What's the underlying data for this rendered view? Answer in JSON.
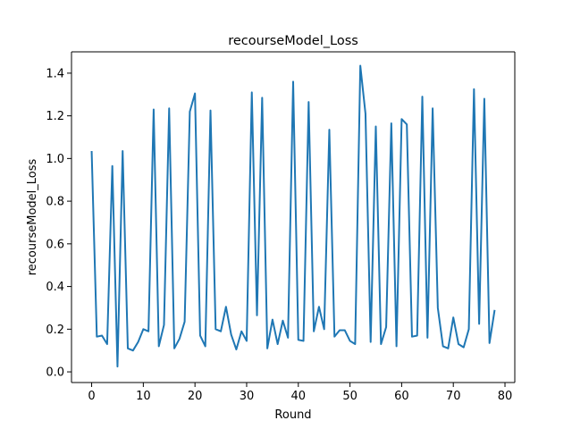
{
  "chart_data": {
    "type": "line",
    "title": "recourseModel_Loss",
    "xlabel": "Round",
    "ylabel": "recourseModel_Loss",
    "xlim": [
      -3.9,
      81.9
    ],
    "ylim": [
      -0.05,
      1.5
    ],
    "xticks": [
      0,
      10,
      20,
      30,
      40,
      50,
      60,
      70,
      80
    ],
    "xtick_labels": [
      "0",
      "10",
      "20",
      "30",
      "40",
      "50",
      "60",
      "70",
      "80"
    ],
    "yticks": [
      0.0,
      0.2,
      0.4,
      0.6,
      0.8,
      1.0,
      1.2,
      1.4
    ],
    "ytick_labels": [
      "0.0",
      "0.2",
      "0.4",
      "0.6",
      "0.8",
      "1.0",
      "1.2",
      "1.4"
    ],
    "grid": false,
    "series": [
      {
        "color": "#1f77b4",
        "x": [
          0,
          1,
          2,
          3,
          4,
          5,
          6,
          7,
          8,
          9,
          10,
          11,
          12,
          13,
          14,
          15,
          16,
          17,
          18,
          19,
          20,
          21,
          22,
          23,
          24,
          25,
          26,
          27,
          28,
          29,
          30,
          31,
          32,
          33,
          34,
          35,
          36,
          37,
          38,
          39,
          40,
          41,
          42,
          43,
          44,
          45,
          46,
          47,
          48,
          49,
          50,
          51,
          52,
          53,
          54,
          55,
          56,
          57,
          58,
          59,
          60,
          61,
          62,
          63,
          64,
          65,
          66,
          67,
          68,
          69,
          70,
          71,
          72,
          73,
          74,
          75,
          76,
          77,
          78
        ],
        "values": [
          1.035,
          0.165,
          0.17,
          0.13,
          0.965,
          0.025,
          1.035,
          0.11,
          0.1,
          0.14,
          0.2,
          0.19,
          1.23,
          0.12,
          0.22,
          1.235,
          0.11,
          0.155,
          0.235,
          1.22,
          1.305,
          0.17,
          0.12,
          1.225,
          0.2,
          0.19,
          0.305,
          0.175,
          0.105,
          0.19,
          0.145,
          1.31,
          0.265,
          1.285,
          0.11,
          0.245,
          0.13,
          0.24,
          0.16,
          1.36,
          0.15,
          0.145,
          1.265,
          0.19,
          0.305,
          0.2,
          1.135,
          0.165,
          0.195,
          0.195,
          0.145,
          0.13,
          1.435,
          1.21,
          0.14,
          1.15,
          0.13,
          0.21,
          1.165,
          0.12,
          1.185,
          1.16,
          0.165,
          0.17,
          1.29,
          0.16,
          1.235,
          0.3,
          0.12,
          0.11,
          0.255,
          0.13,
          0.115,
          0.2,
          1.325,
          0.225,
          1.28,
          0.135,
          0.29
        ]
      }
    ]
  }
}
